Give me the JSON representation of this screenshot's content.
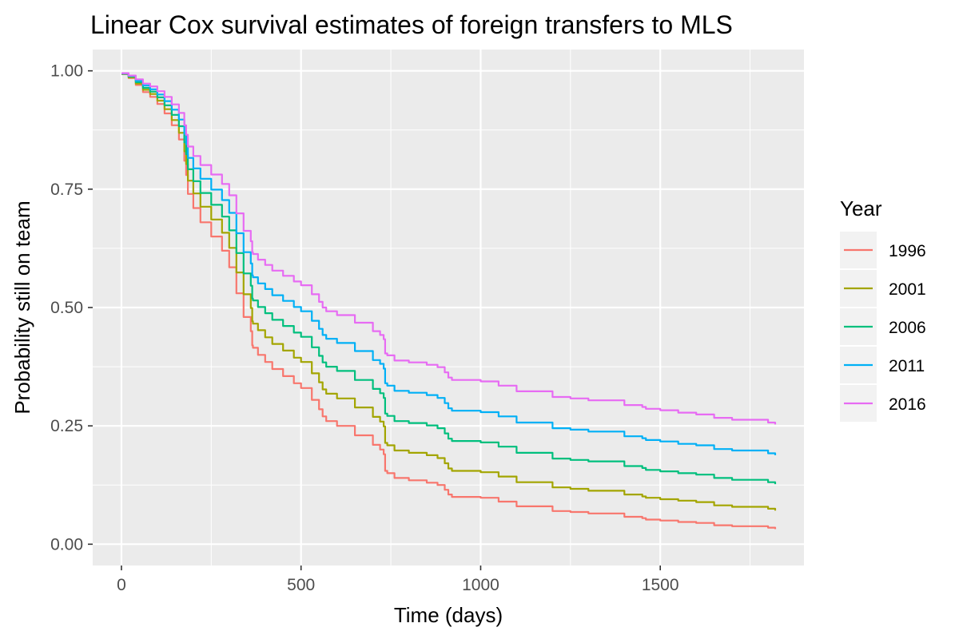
{
  "chart_data": {
    "type": "line",
    "title": "Linear Cox survival estimates of foreign transfers to MLS",
    "xlabel": "Time (days)",
    "ylabel": "Probability still on team",
    "xlim": [
      -80,
      1900
    ],
    "ylim": [
      -0.045,
      1.045
    ],
    "x_ticks": [
      0,
      500,
      1000,
      1500
    ],
    "x_tick_labels": [
      "0",
      "500",
      "1000",
      "1500"
    ],
    "y_ticks": [
      0,
      0.25,
      0.5,
      0.75,
      1
    ],
    "y_tick_labels": [
      "0.00",
      "0.25",
      "0.50",
      "0.75",
      "1.00"
    ],
    "grid": true,
    "legend": {
      "title": "Year",
      "position": "right"
    },
    "x": [
      0,
      20,
      40,
      60,
      80,
      100,
      120,
      140,
      160,
      175,
      180,
      185,
      200,
      220,
      250,
      280,
      300,
      320,
      340,
      360,
      364,
      366,
      380,
      400,
      420,
      450,
      480,
      500,
      530,
      550,
      560,
      570,
      600,
      650,
      700,
      720,
      730,
      734,
      740,
      760,
      800,
      850,
      880,
      900,
      910,
      920,
      1000,
      1050,
      1100,
      1200,
      1250,
      1300,
      1400,
      1450,
      1460,
      1500,
      1550,
      1600,
      1650,
      1700,
      1800,
      1820
    ],
    "series": [
      {
        "name": "1996",
        "color": "#F8766D",
        "values": [
          0.993,
          0.985,
          0.97,
          0.955,
          0.945,
          0.93,
          0.91,
          0.885,
          0.855,
          0.81,
          0.78,
          0.74,
          0.71,
          0.68,
          0.65,
          0.62,
          0.585,
          0.53,
          0.48,
          0.45,
          0.42,
          0.415,
          0.4,
          0.385,
          0.37,
          0.355,
          0.34,
          0.33,
          0.305,
          0.285,
          0.27,
          0.26,
          0.25,
          0.23,
          0.21,
          0.2,
          0.19,
          0.155,
          0.15,
          0.14,
          0.135,
          0.13,
          0.125,
          0.115,
          0.105,
          0.1,
          0.098,
          0.09,
          0.08,
          0.07,
          0.068,
          0.065,
          0.058,
          0.055,
          0.052,
          0.05,
          0.047,
          0.045,
          0.04,
          0.038,
          0.035,
          0.032
        ]
      },
      {
        "name": "2001",
        "color": "#A3A500",
        "values": [
          0.993,
          0.986,
          0.973,
          0.96,
          0.951,
          0.937,
          0.919,
          0.896,
          0.869,
          0.83,
          0.803,
          0.768,
          0.741,
          0.713,
          0.686,
          0.658,
          0.626,
          0.574,
          0.528,
          0.499,
          0.471,
          0.466,
          0.452,
          0.437,
          0.423,
          0.409,
          0.394,
          0.385,
          0.361,
          0.342,
          0.327,
          0.318,
          0.308,
          0.289,
          0.269,
          0.259,
          0.249,
          0.214,
          0.209,
          0.198,
          0.193,
          0.188,
          0.182,
          0.171,
          0.16,
          0.155,
          0.152,
          0.143,
          0.131,
          0.12,
          0.117,
          0.113,
          0.105,
          0.101,
          0.098,
          0.095,
          0.092,
          0.089,
          0.082,
          0.079,
          0.075,
          0.071
        ]
      },
      {
        "name": "2006",
        "color": "#00BF7D",
        "values": [
          0.994,
          0.988,
          0.976,
          0.964,
          0.956,
          0.944,
          0.927,
          0.907,
          0.883,
          0.849,
          0.824,
          0.792,
          0.767,
          0.742,
          0.717,
          0.692,
          0.663,
          0.615,
          0.572,
          0.546,
          0.519,
          0.515,
          0.501,
          0.488,
          0.474,
          0.461,
          0.447,
          0.438,
          0.416,
          0.398,
          0.384,
          0.375,
          0.366,
          0.347,
          0.328,
          0.319,
          0.309,
          0.276,
          0.271,
          0.26,
          0.256,
          0.251,
          0.245,
          0.234,
          0.223,
          0.218,
          0.215,
          0.206,
          0.193,
          0.181,
          0.178,
          0.175,
          0.165,
          0.161,
          0.157,
          0.154,
          0.15,
          0.147,
          0.14,
          0.136,
          0.131,
          0.127
        ]
      },
      {
        "name": "2011",
        "color": "#00B0F6",
        "values": [
          0.994,
          0.989,
          0.979,
          0.969,
          0.961,
          0.95,
          0.936,
          0.918,
          0.897,
          0.867,
          0.845,
          0.816,
          0.794,
          0.772,
          0.749,
          0.727,
          0.7,
          0.657,
          0.617,
          0.593,
          0.568,
          0.564,
          0.551,
          0.539,
          0.526,
          0.514,
          0.501,
          0.492,
          0.472,
          0.455,
          0.442,
          0.434,
          0.425,
          0.408,
          0.389,
          0.381,
          0.371,
          0.34,
          0.335,
          0.324,
          0.32,
          0.315,
          0.309,
          0.298,
          0.287,
          0.282,
          0.279,
          0.27,
          0.257,
          0.245,
          0.242,
          0.238,
          0.228,
          0.224,
          0.22,
          0.217,
          0.212,
          0.209,
          0.201,
          0.198,
          0.192,
          0.188
        ]
      },
      {
        "name": "2016",
        "color": "#E76BF3",
        "values": [
          0.995,
          0.99,
          0.982,
          0.973,
          0.967,
          0.957,
          0.945,
          0.929,
          0.911,
          0.885,
          0.865,
          0.84,
          0.82,
          0.801,
          0.781,
          0.761,
          0.737,
          0.699,
          0.662,
          0.64,
          0.617,
          0.613,
          0.601,
          0.59,
          0.578,
          0.567,
          0.555,
          0.547,
          0.528,
          0.512,
          0.5,
          0.492,
          0.484,
          0.468,
          0.45,
          0.442,
          0.433,
          0.403,
          0.399,
          0.388,
          0.384,
          0.379,
          0.374,
          0.363,
          0.352,
          0.347,
          0.344,
          0.335,
          0.323,
          0.311,
          0.308,
          0.304,
          0.294,
          0.29,
          0.286,
          0.283,
          0.278,
          0.274,
          0.267,
          0.263,
          0.257,
          0.253
        ]
      }
    ]
  }
}
